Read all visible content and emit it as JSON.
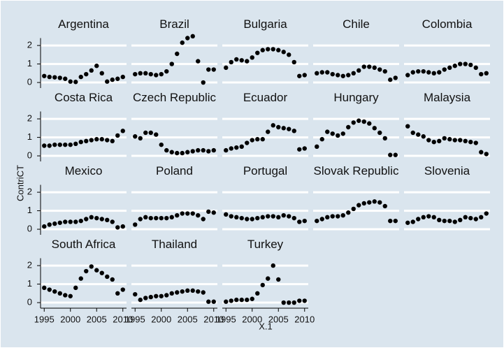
{
  "chart_data": {
    "type": "scatter",
    "ylabel": "ContriCT",
    "xlabel": "X.1",
    "x": [
      1995,
      1996,
      1997,
      1998,
      1999,
      2000,
      2001,
      2002,
      2003,
      2004,
      2005,
      2006,
      2007,
      2008,
      2009,
      2010
    ],
    "xlim": [
      1994.3,
      2010.7
    ],
    "ylim": [
      -0.3,
      2.4
    ],
    "xticks": [
      1995,
      2000,
      2005,
      2010
    ],
    "yticks": [
      0,
      1,
      2
    ],
    "grid": true,
    "color": "#000000",
    "panels": [
      {
        "title": "Argentina",
        "values": [
          0.35,
          0.3,
          0.28,
          0.25,
          0.2,
          0.05,
          0.03,
          0.3,
          0.45,
          0.65,
          0.9,
          0.5,
          0.05,
          0.15,
          0.2,
          0.3
        ]
      },
      {
        "title": "Brazil",
        "values": [
          0.45,
          0.5,
          0.5,
          0.45,
          0.4,
          0.45,
          0.6,
          1.0,
          1.55,
          2.15,
          2.4,
          2.5,
          1.15,
          0.0,
          0.7,
          0.7
        ]
      },
      {
        "title": "Bulgaria",
        "values": [
          0.8,
          1.1,
          1.25,
          1.2,
          1.15,
          1.35,
          1.6,
          1.75,
          1.8,
          1.8,
          1.75,
          1.65,
          1.5,
          1.1,
          0.35,
          0.4
        ]
      },
      {
        "title": "Chile",
        "values": [
          0.5,
          0.55,
          0.55,
          0.45,
          0.4,
          0.35,
          0.4,
          0.5,
          0.65,
          0.85,
          0.85,
          0.8,
          0.7,
          0.6,
          0.15,
          0.25
        ]
      },
      {
        "title": "Colombia",
        "values": [
          0.4,
          0.55,
          0.6,
          0.6,
          0.55,
          0.5,
          0.55,
          0.7,
          0.8,
          0.9,
          1.0,
          1.0,
          0.95,
          0.8,
          0.45,
          0.5
        ]
      },
      {
        "title": "Costa Rica",
        "values": [
          0.55,
          0.55,
          0.6,
          0.6,
          0.6,
          0.6,
          0.65,
          0.75,
          0.8,
          0.85,
          0.9,
          0.9,
          0.85,
          0.8,
          1.1,
          1.35
        ]
      },
      {
        "title": "Czech Republic",
        "values": [
          1.05,
          0.95,
          1.25,
          1.25,
          1.15,
          0.6,
          0.3,
          0.2,
          0.15,
          0.15,
          0.2,
          0.25,
          0.3,
          0.3,
          0.25,
          0.3
        ]
      },
      {
        "title": "Ecuador",
        "values": [
          0.3,
          0.4,
          0.45,
          0.5,
          0.7,
          0.85,
          0.9,
          0.9,
          1.3,
          1.65,
          1.55,
          1.5,
          1.45,
          1.35,
          0.35,
          0.4
        ]
      },
      {
        "title": "Hungary",
        "values": [
          0.5,
          0.9,
          1.3,
          1.2,
          1.1,
          1.2,
          1.55,
          1.8,
          1.9,
          1.85,
          1.75,
          1.5,
          1.25,
          0.95,
          0.05,
          0.05
        ]
      },
      {
        "title": "Malaysia",
        "values": [
          1.6,
          1.25,
          1.15,
          1.05,
          0.85,
          0.75,
          0.8,
          0.95,
          0.9,
          0.85,
          0.85,
          0.8,
          0.75,
          0.7,
          0.2,
          0.1
        ]
      },
      {
        "title": "Mexico",
        "values": [
          0.15,
          0.25,
          0.3,
          0.35,
          0.4,
          0.4,
          0.4,
          0.45,
          0.55,
          0.65,
          0.6,
          0.55,
          0.5,
          0.4,
          0.1,
          0.15
        ]
      },
      {
        "title": "Poland",
        "values": [
          0.25,
          0.55,
          0.65,
          0.6,
          0.6,
          0.6,
          0.6,
          0.65,
          0.75,
          0.85,
          0.85,
          0.85,
          0.75,
          0.55,
          0.95,
          0.9
        ]
      },
      {
        "title": "Portugal",
        "values": [
          0.8,
          0.7,
          0.65,
          0.6,
          0.55,
          0.55,
          0.6,
          0.65,
          0.7,
          0.7,
          0.65,
          0.75,
          0.7,
          0.6,
          0.4,
          0.45
        ]
      },
      {
        "title": "Slovak Republic",
        "values": [
          0.45,
          0.55,
          0.65,
          0.7,
          0.7,
          0.75,
          0.9,
          1.1,
          1.3,
          1.4,
          1.45,
          1.5,
          1.45,
          1.25,
          0.45,
          0.45
        ]
      },
      {
        "title": "Slovenia",
        "values": [
          0.35,
          0.4,
          0.55,
          0.65,
          0.7,
          0.65,
          0.5,
          0.45,
          0.45,
          0.4,
          0.5,
          0.65,
          0.6,
          0.55,
          0.65,
          0.85
        ]
      },
      {
        "title": "South Africa",
        "values": [
          0.8,
          0.7,
          0.6,
          0.5,
          0.4,
          0.35,
          0.8,
          1.3,
          1.7,
          1.95,
          1.75,
          1.6,
          1.4,
          1.25,
          0.5,
          0.7
        ]
      },
      {
        "title": "Thailand",
        "values": [
          0.45,
          0.15,
          0.25,
          0.3,
          0.35,
          0.35,
          0.4,
          0.5,
          0.55,
          0.6,
          0.65,
          0.65,
          0.6,
          0.55,
          0.05,
          0.05
        ]
      },
      {
        "title": "Turkey",
        "values": [
          0.05,
          0.1,
          0.15,
          0.15,
          0.15,
          0.2,
          0.5,
          0.95,
          1.3,
          2.0,
          1.25,
          0.0,
          0.0,
          0.0,
          0.1,
          0.1
        ]
      }
    ]
  }
}
